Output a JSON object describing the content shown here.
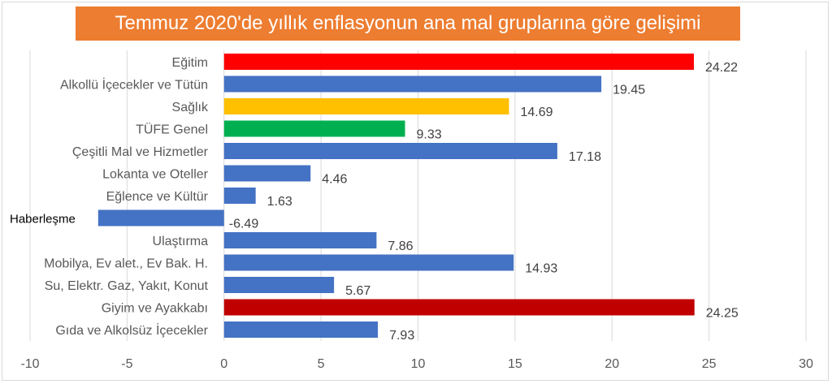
{
  "chart_data": {
    "type": "bar",
    "orientation": "horizontal",
    "title": "Temmuz 2020'de yıllık enflasyonun ana mal gruplarına göre gelişimi",
    "xlim": [
      -10,
      30
    ],
    "xticks": [
      -10,
      -5,
      0,
      5,
      10,
      15,
      20,
      25,
      30
    ],
    "grid": true,
    "categories": [
      "Eğitim",
      "Alkollü İçecekler ve Tütün",
      "Sağlık",
      "TÜFE Genel",
      "Çeşitli Mal ve Hizmetler",
      "Lokanta ve Oteller",
      "Eğlence ve Kültür",
      "Haberleşme",
      "Ulaştırma",
      "Mobilya, Ev alet., Ev Bak. H.",
      "Su, Elektr. Gaz, Yakıt, Konut",
      "Giyim ve Ayakkabı",
      "Gıda ve Alkolsüz İçecekler"
    ],
    "values": [
      24.22,
      19.45,
      14.69,
      9.33,
      17.18,
      4.46,
      1.63,
      -6.49,
      7.86,
      14.93,
      5.67,
      24.25,
      7.93
    ],
    "value_labels": [
      "24.22",
      "19.45",
      "14.69",
      "9.33",
      "17.18",
      "4.46",
      "1.63",
      "-6.49",
      "7.86",
      "14.93",
      "5.67",
      "24.25",
      "7.93"
    ],
    "colors": [
      "#ff0000",
      "#4472c4",
      "#ffc000",
      "#00b050",
      "#4472c4",
      "#4472c4",
      "#4472c4",
      "#4472c4",
      "#4472c4",
      "#4472c4",
      "#4472c4",
      "#c00000",
      "#4472c4"
    ]
  }
}
